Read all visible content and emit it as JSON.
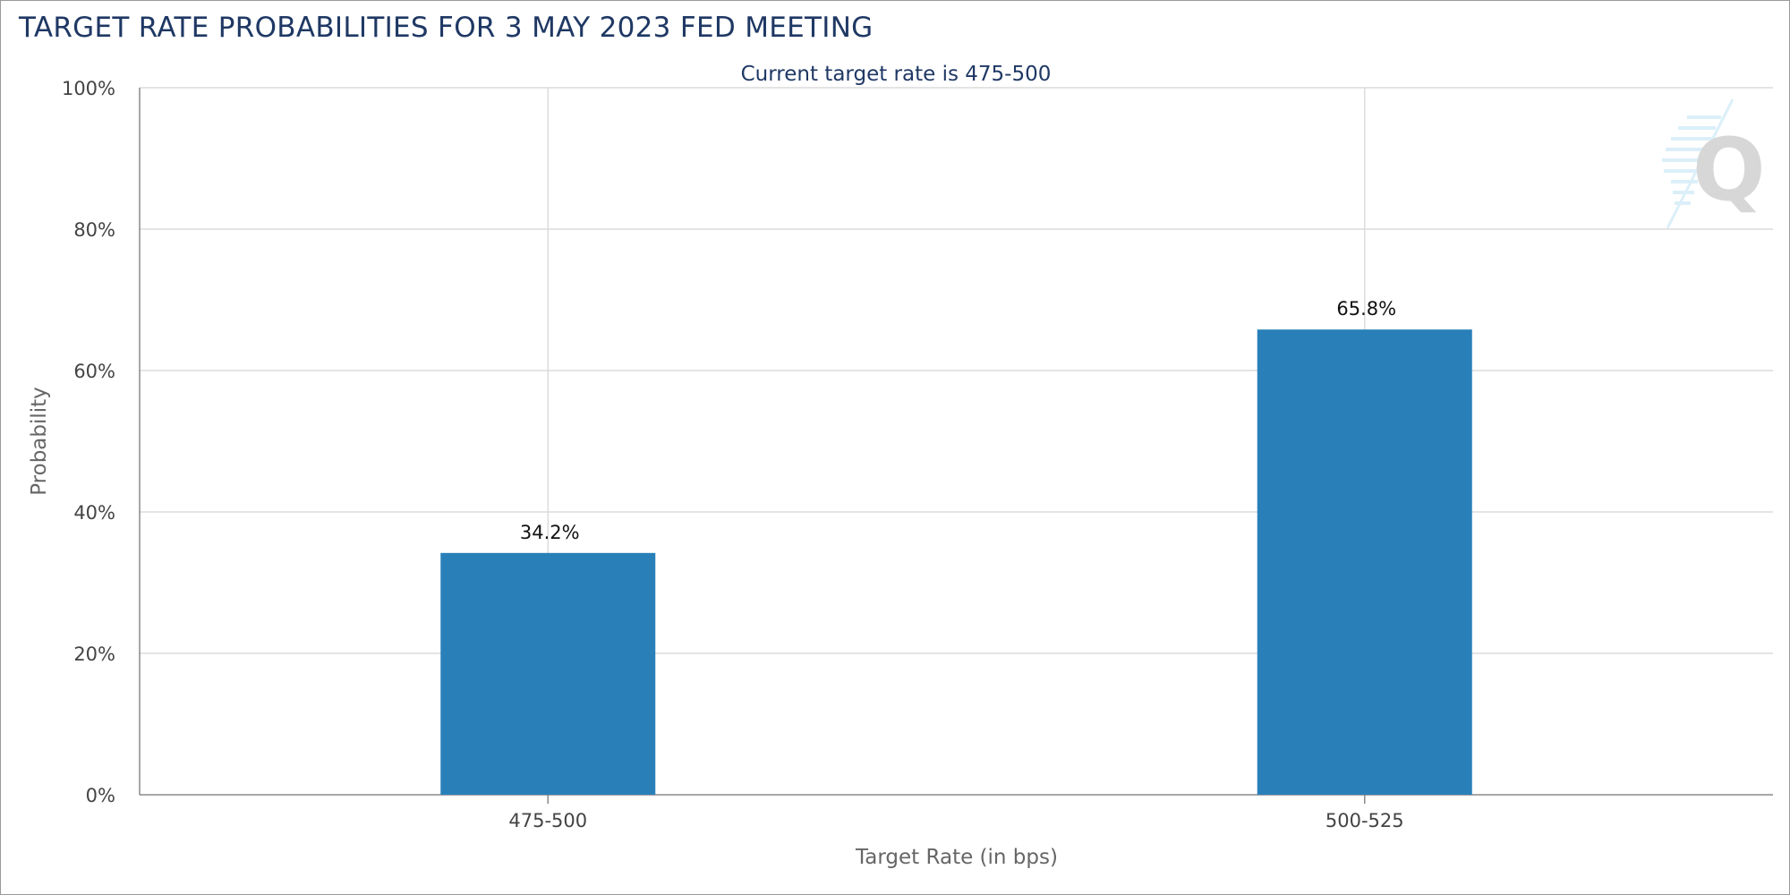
{
  "chart_data": {
    "type": "bar",
    "title": "TARGET RATE PROBABILITIES FOR 3 MAY 2023 FED MEETING",
    "subtitle": "Current target rate is 475-500",
    "xlabel": "Target Rate (in bps)",
    "ylabel": "Probability",
    "categories": [
      "475-500",
      "500-525"
    ],
    "values": [
      34.2,
      65.8
    ],
    "value_labels": [
      "34.2%",
      "65.8%"
    ],
    "ylim": [
      0,
      100
    ],
    "yticks": [
      0,
      20,
      40,
      60,
      80,
      100
    ],
    "ytick_labels": [
      "0%",
      "20%",
      "40%",
      "60%",
      "80%",
      "100%"
    ],
    "grid": true,
    "bar_color": "#2980b9"
  },
  "watermark": {
    "icon": "q-logo-watermark-icon",
    "letter": "Q"
  }
}
